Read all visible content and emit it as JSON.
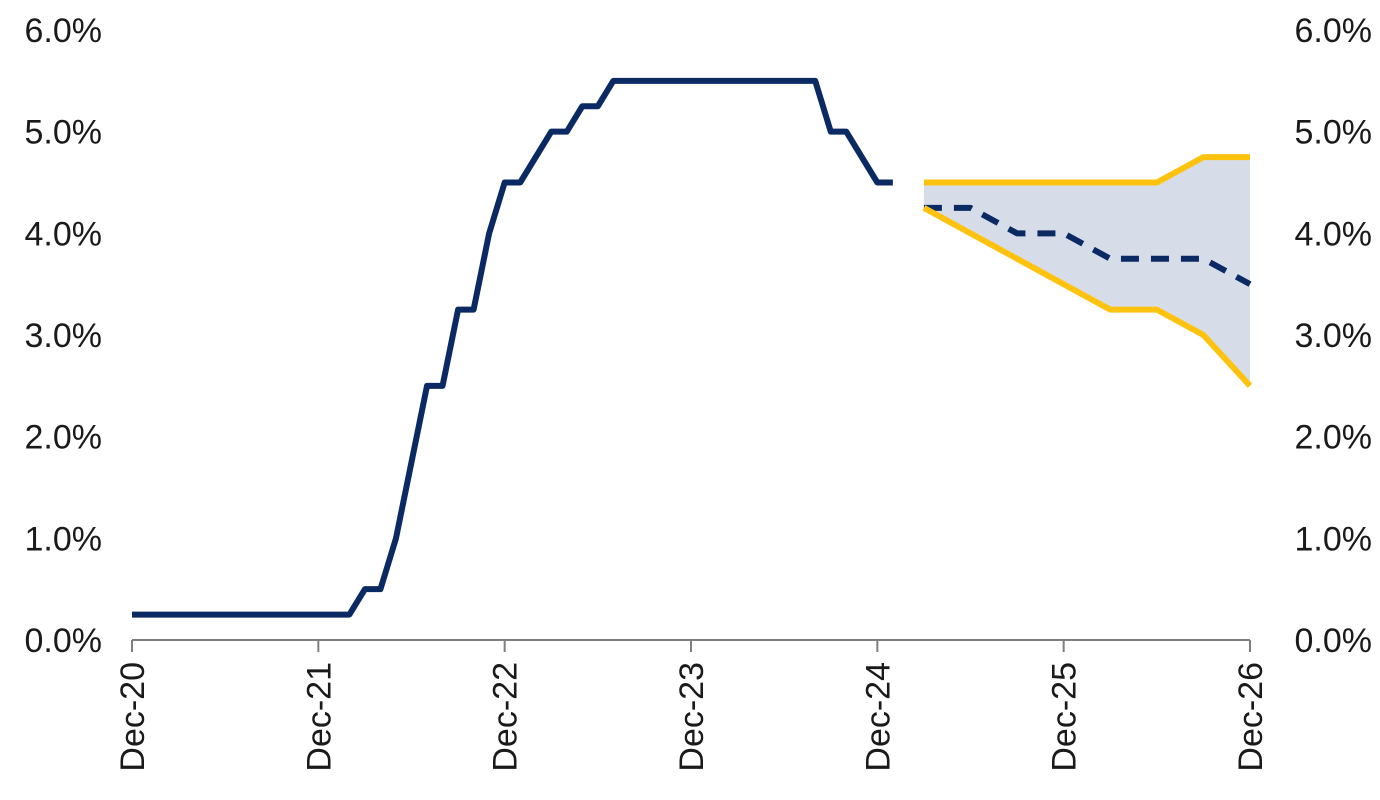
{
  "chart_data": {
    "type": "line",
    "title": "",
    "xlabel": "",
    "ylabel": "",
    "x_range": [
      "2020-12",
      "2026-12"
    ],
    "ylim": [
      0,
      6
    ],
    "y_ticks": [
      0,
      1,
      2,
      3,
      4,
      5,
      6
    ],
    "y_tick_labels": [
      "0.0%",
      "1.0%",
      "2.0%",
      "3.0%",
      "4.0%",
      "5.0%",
      "6.0%"
    ],
    "right_y_tick_labels": [
      "0.0%",
      "1.0%",
      "2.0%",
      "3.0%",
      "4.0%",
      "5.0%",
      "6.0%"
    ],
    "x_ticks": [
      "2020-12",
      "2021-12",
      "2022-12",
      "2023-12",
      "2024-12",
      "2025-12",
      "2026-12"
    ],
    "x_tick_labels": [
      "Dec-20",
      "Dec-21",
      "Dec-22",
      "Dec-23",
      "Dec-24",
      "Dec-25",
      "Dec-26"
    ],
    "grid": false,
    "legend": "none",
    "series": [
      {
        "style": "solid",
        "color": "#0b2a63",
        "points": [
          [
            "2020-12",
            0.25
          ],
          [
            "2022-02",
            0.25
          ],
          [
            "2022-03",
            0.5
          ],
          [
            "2022-04",
            0.5
          ],
          [
            "2022-05",
            1.0
          ],
          [
            "2022-07",
            2.5
          ],
          [
            "2022-08",
            2.5
          ],
          [
            "2022-09",
            3.25
          ],
          [
            "2022-10",
            3.25
          ],
          [
            "2022-11",
            4.0
          ],
          [
            "2022-12",
            4.5
          ],
          [
            "2023-01",
            4.5
          ],
          [
            "2023-03",
            5.0
          ],
          [
            "2023-04",
            5.0
          ],
          [
            "2023-05",
            5.25
          ],
          [
            "2023-06",
            5.25
          ],
          [
            "2023-07",
            5.5
          ],
          [
            "2024-08",
            5.5
          ],
          [
            "2024-09",
            5.0
          ],
          [
            "2024-10",
            5.0
          ],
          [
            "2024-12",
            4.5
          ],
          [
            "2025-01",
            4.5
          ]
        ]
      },
      {
        "style": "dashed",
        "color": "#0b2a63",
        "points": [
          [
            "2025-03",
            4.25
          ],
          [
            "2025-06",
            4.25
          ],
          [
            "2025-09",
            4.0
          ],
          [
            "2025-12",
            4.0
          ],
          [
            "2026-03",
            3.75
          ],
          [
            "2026-09",
            3.75
          ],
          [
            "2026-12",
            3.5
          ]
        ]
      },
      {
        "style": "solid",
        "color": "#ffc20e",
        "points": [
          [
            "2025-03",
            4.5
          ],
          [
            "2026-06",
            4.5
          ],
          [
            "2026-09",
            4.75
          ],
          [
            "2026-12",
            4.75
          ]
        ]
      },
      {
        "style": "solid",
        "color": "#ffc20e",
        "points": [
          [
            "2025-03",
            4.25
          ],
          [
            "2026-03",
            3.25
          ],
          [
            "2026-06",
            3.25
          ],
          [
            "2026-09",
            3.0
          ],
          [
            "2026-12",
            2.5
          ]
        ]
      }
    ],
    "band": {
      "color": "#d6dde8",
      "upper": [
        [
          "2025-03",
          4.5
        ],
        [
          "2026-06",
          4.5
        ],
        [
          "2026-09",
          4.75
        ],
        [
          "2026-12",
          4.75
        ]
      ],
      "lower": [
        [
          "2025-03",
          4.25
        ],
        [
          "2026-03",
          3.25
        ],
        [
          "2026-06",
          3.25
        ],
        [
          "2026-09",
          3.0
        ],
        [
          "2026-12",
          2.5
        ]
      ]
    }
  }
}
